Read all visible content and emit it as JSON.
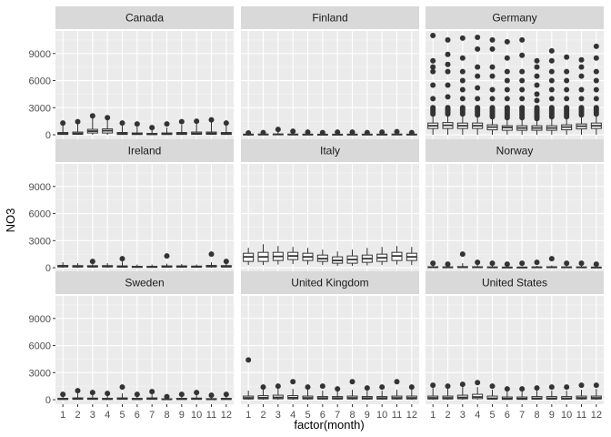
{
  "chart_data": {
    "type": "boxplot",
    "facet_layout": "3x3",
    "xlabel": "factor(month)",
    "ylabel": "NO3",
    "x_categories": [
      "1",
      "2",
      "3",
      "4",
      "5",
      "6",
      "7",
      "8",
      "9",
      "10",
      "11",
      "12"
    ],
    "y_ticks": [
      0,
      3000,
      6000,
      9000
    ],
    "ylim": [
      -500,
      11500
    ],
    "grid": true,
    "panel_background": "#ebebeb",
    "strip_background": "#d9d9d9",
    "box_outline_color": "#333333",
    "box_fill_color": "#ffffff",
    "facets": [
      {
        "label": "Canada",
        "whisker_max": [
          1200,
          1300,
          1900,
          1700,
          1000,
          900,
          700,
          800,
          1100,
          1400,
          1500,
          1100
        ],
        "q3": [
          250,
          300,
          600,
          650,
          250,
          200,
          150,
          200,
          250,
          300,
          300,
          250
        ],
        "median": [
          120,
          140,
          400,
          450,
          120,
          100,
          80,
          100,
          120,
          140,
          150,
          120
        ],
        "q1": [
          40,
          50,
          200,
          200,
          40,
          30,
          20,
          30,
          40,
          50,
          50,
          40
        ],
        "outliers": [
          [
            1300
          ],
          [
            1450
          ],
          [
            2100
          ],
          [
            1900
          ],
          [
            1300
          ],
          [
            1200
          ],
          [
            800
          ],
          [
            1200
          ],
          [
            1450
          ],
          [
            1500
          ],
          [
            1650
          ],
          [
            1300
          ]
        ]
      },
      {
        "label": "Finland",
        "whisker_max": [
          150,
          200,
          400,
          250,
          200,
          150,
          150,
          200,
          150,
          200,
          200,
          150
        ],
        "q3": [
          60,
          70,
          80,
          70,
          60,
          50,
          50,
          60,
          60,
          60,
          70,
          60
        ],
        "median": [
          30,
          30,
          40,
          30,
          30,
          25,
          25,
          30,
          30,
          30,
          30,
          30
        ],
        "q1": [
          10,
          10,
          15,
          10,
          10,
          10,
          10,
          10,
          10,
          10,
          10,
          10
        ],
        "outliers": [
          [
            200
          ],
          [
            250
          ],
          [
            600
          ],
          [
            400
          ],
          [
            300
          ],
          [
            250
          ],
          [
            300
          ],
          [
            300
          ],
          [
            250
          ],
          [
            300
          ],
          [
            350
          ],
          [
            250
          ]
        ]
      },
      {
        "label": "Germany",
        "whisker_max": [
          2300,
          2300,
          2300,
          2200,
          2000,
          1900,
          1900,
          1800,
          2000,
          2000,
          2200,
          2300
        ],
        "q3": [
          1300,
          1350,
          1300,
          1300,
          1100,
          1000,
          1000,
          1000,
          1000,
          1100,
          1200,
          1300
        ],
        "median": [
          1000,
          1050,
          1000,
          1000,
          850,
          800,
          750,
          750,
          750,
          850,
          950,
          1000
        ],
        "q1": [
          700,
          700,
          700,
          700,
          550,
          500,
          500,
          500,
          500,
          550,
          650,
          700
        ],
        "outliers": [
          [
            3000,
            4000,
            5500,
            7000,
            7500,
            8200,
            11000
          ],
          [
            3000,
            4200,
            5500,
            7000,
            7800,
            8900,
            10500
          ],
          [
            3000,
            4000,
            5000,
            6000,
            7000,
            8500,
            10700
          ],
          [
            3000,
            4000,
            5200,
            6500,
            7500,
            9500,
            10800
          ],
          [
            3000,
            4000,
            5000,
            6500,
            7500,
            9500,
            10500
          ],
          [
            3000,
            4000,
            5000,
            6000,
            7000,
            8500,
            10300
          ],
          [
            3000,
            4000,
            5000,
            6000,
            7000,
            8800,
            10500
          ],
          [
            3000,
            3800,
            4500,
            5500,
            6500,
            7500,
            8200
          ],
          [
            3000,
            4000,
            5000,
            6000,
            7000,
            8200,
            9300
          ],
          [
            3000,
            4000,
            5000,
            6000,
            7000,
            8600
          ],
          [
            3000,
            4000,
            5000,
            6500,
            7500,
            8300
          ],
          [
            3000,
            4000,
            5000,
            6000,
            7000,
            8500,
            9800
          ]
        ]
      },
      {
        "label": "Ireland",
        "whisker_max": [
          600,
          500,
          450,
          500,
          700,
          350,
          350,
          450,
          400,
          350,
          600,
          500
        ],
        "q3": [
          250,
          230,
          220,
          230,
          200,
          150,
          150,
          200,
          200,
          180,
          250,
          230
        ],
        "median": [
          150,
          140,
          130,
          140,
          120,
          90,
          90,
          120,
          120,
          110,
          150,
          140
        ],
        "q1": [
          80,
          70,
          70,
          80,
          60,
          40,
          40,
          60,
          60,
          50,
          80,
          70
        ],
        "outliers": [
          [],
          [],
          [
            700
          ],
          [],
          [
            1000
          ],
          [],
          [],
          [
            1300
          ],
          [],
          [],
          [
            1500
          ],
          [
            700
          ]
        ]
      },
      {
        "label": "Italy",
        "whisker_max": [
          2200,
          2600,
          2400,
          2300,
          2200,
          2000,
          1800,
          2000,
          2200,
          2300,
          2400,
          2300
        ],
        "q3": [
          1600,
          1700,
          1700,
          1700,
          1600,
          1400,
          1200,
          1300,
          1400,
          1500,
          1700,
          1600
        ],
        "median": [
          1200,
          1200,
          1250,
          1300,
          1200,
          1000,
          800,
          900,
          1000,
          1100,
          1300,
          1200
        ],
        "q1": [
          700,
          700,
          800,
          900,
          800,
          700,
          500,
          500,
          600,
          700,
          800,
          800
        ],
        "whisker_min": [
          300,
          300,
          350,
          400,
          350,
          300,
          200,
          200,
          250,
          300,
          350,
          300
        ],
        "outliers": [
          [],
          [],
          [],
          [],
          [],
          [],
          [],
          [],
          [],
          [],
          [],
          []
        ]
      },
      {
        "label": "Norway",
        "whisker_max": [
          250,
          200,
          500,
          300,
          200,
          150,
          150,
          200,
          250,
          200,
          200,
          150
        ],
        "q3": [
          100,
          80,
          120,
          100,
          80,
          60,
          60,
          80,
          100,
          80,
          80,
          60
        ],
        "median": [
          50,
          40,
          60,
          50,
          40,
          30,
          30,
          40,
          50,
          40,
          40,
          30
        ],
        "q1": [
          20,
          15,
          20,
          20,
          15,
          10,
          10,
          15,
          20,
          15,
          15,
          10
        ],
        "outliers": [
          [
            500
          ],
          [
            400
          ],
          [
            1500
          ],
          [
            600
          ],
          [
            500
          ],
          [
            400
          ],
          [
            500
          ],
          [
            600
          ],
          [
            1000
          ],
          [
            500
          ],
          [
            500
          ],
          [
            400
          ]
        ]
      },
      {
        "label": "Sweden",
        "whisker_max": [
          400,
          700,
          550,
          450,
          700,
          400,
          600,
          250,
          400,
          500,
          350,
          400
        ],
        "q3": [
          150,
          200,
          180,
          150,
          200,
          150,
          200,
          100,
          150,
          180,
          120,
          150
        ],
        "median": [
          80,
          100,
          90,
          80,
          100,
          70,
          100,
          50,
          80,
          90,
          60,
          80
        ],
        "q1": [
          30,
          40,
          40,
          30,
          40,
          30,
          40,
          20,
          30,
          40,
          20,
          30
        ],
        "outliers": [
          [
            600
          ],
          [
            1000
          ],
          [
            800
          ],
          [
            700
          ],
          [
            1400
          ],
          [
            600
          ],
          [
            900
          ],
          [
            350
          ],
          [
            600
          ],
          [
            800
          ],
          [
            500
          ],
          [
            600
          ]
        ]
      },
      {
        "label": "United Kingdom",
        "whisker_max": [
          1000,
          1200,
          1300,
          1200,
          1100,
          1000,
          1000,
          1100,
          1000,
          1000,
          1100,
          1100
        ],
        "q3": [
          400,
          450,
          500,
          450,
          400,
          350,
          350,
          400,
          350,
          350,
          400,
          400
        ],
        "median": [
          200,
          220,
          250,
          220,
          200,
          180,
          180,
          200,
          180,
          180,
          200,
          200
        ],
        "q1": [
          80,
          90,
          100,
          90,
          80,
          70,
          70,
          80,
          70,
          70,
          80,
          80
        ],
        "outliers": [
          [
            4400
          ],
          [
            1400
          ],
          [
            1500
          ],
          [
            2000
          ],
          [
            1400
          ],
          [
            1500
          ],
          [
            1200
          ],
          [
            2000
          ],
          [
            1300
          ],
          [
            1400
          ],
          [
            2000
          ],
          [
            1400
          ]
        ]
      },
      {
        "label": "United States",
        "whisker_max": [
          1300,
          1300,
          1400,
          1400,
          1100,
          900,
          900,
          1000,
          1000,
          1000,
          1100,
          1200
        ],
        "q3": [
          400,
          400,
          500,
          600,
          400,
          300,
          300,
          350,
          350,
          350,
          400,
          400
        ],
        "median": [
          200,
          200,
          250,
          300,
          150,
          120,
          120,
          150,
          150,
          150,
          200,
          200
        ],
        "q1": [
          80,
          80,
          100,
          120,
          60,
          40,
          40,
          60,
          60,
          60,
          80,
          80
        ],
        "outliers": [
          [
            1600
          ],
          [
            1500
          ],
          [
            1700
          ],
          [
            1900
          ],
          [
            1500
          ],
          [
            1200
          ],
          [
            1200
          ],
          [
            1300
          ],
          [
            1400
          ],
          [
            1400
          ],
          [
            1600
          ],
          [
            1600
          ]
        ]
      }
    ]
  }
}
